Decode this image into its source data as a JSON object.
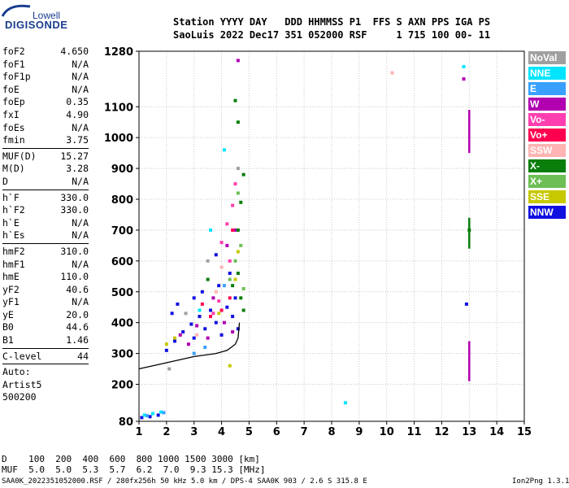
{
  "logo": {
    "top": "Lowell",
    "bottom": "DIGISONDE"
  },
  "header": {
    "row1": "Station YYYY DAY   DDD HHMMSS P1  FFS S AXN PPS IGA PS",
    "row2": "SaoLuis 2022 Dec17 351 052000 RSF     1 715 100 00- 11"
  },
  "params": {
    "group1": [
      [
        "foF2",
        "4.650"
      ],
      [
        "foF1",
        "N/A"
      ],
      [
        "foF1p",
        "N/A"
      ],
      [
        "foE",
        "N/A"
      ],
      [
        "foEp",
        "0.35"
      ],
      [
        "fxI",
        "4.90"
      ],
      [
        "foEs",
        "N/A"
      ],
      [
        "fmin",
        "3.75"
      ]
    ],
    "group2": [
      [
        "MUF(D)",
        "15.27"
      ],
      [
        "M(D)",
        "3.28"
      ],
      [
        "D",
        "N/A"
      ]
    ],
    "group3": [
      [
        "h`F",
        "330.0"
      ],
      [
        "h`F2",
        "330.0"
      ],
      [
        "h`E",
        "N/A"
      ],
      [
        "h`Es",
        "N/A"
      ]
    ],
    "group4": [
      [
        "hmF2",
        "310.0"
      ],
      [
        "hmF1",
        "N/A"
      ],
      [
        "hmE",
        "110.0"
      ],
      [
        "yF2",
        "40.6"
      ],
      [
        "yF1",
        "N/A"
      ],
      [
        "yE",
        "20.0"
      ],
      [
        "B0",
        "44.6"
      ],
      [
        "B1",
        "1.46"
      ]
    ],
    "clevel": [
      "C-level",
      "44"
    ],
    "auto": [
      "Auto:",
      "Artist5",
      "500200"
    ]
  },
  "legend": [
    {
      "label": "NoVal",
      "color": "#a0a0a0"
    },
    {
      "label": "NNE",
      "color": "#00e5ff"
    },
    {
      "label": "E",
      "color": "#3aa0ff"
    },
    {
      "label": "W",
      "color": "#b000b0"
    },
    {
      "label": "Vo-",
      "color": "#ff3fb0"
    },
    {
      "label": "Vo+",
      "color": "#ff0050"
    },
    {
      "label": "SSW",
      "color": "#ffb3b3"
    },
    {
      "label": "X-",
      "color": "#0a7d0a"
    },
    {
      "label": "X+",
      "color": "#6cbf55"
    },
    {
      "label": "SSE",
      "color": "#c8c800"
    },
    {
      "label": "NNW",
      "color": "#1010e0"
    }
  ],
  "bottom_table": {
    "row1": "D    100  200  400  600  800 1000 1500 3000 [km]",
    "row2": "MUF  5.0  5.0  5.3  5.7  6.2  7.0  9.3 15.3 [MHz]"
  },
  "footer": "SAA0K_2022351052000.RSF / 280fx256h 50 kHz 5.0 km / DPS-4 SAA0K 903 / 2.6 S 315.8 E",
  "version": "Ion2Png 1.3.17",
  "chart_data": {
    "type": "scatter",
    "title": "",
    "xlabel": "",
    "ylabel": "",
    "xlim": [
      1,
      15
    ],
    "ylim": [
      80,
      1280
    ],
    "x_ticks": [
      1,
      2,
      3,
      4,
      5,
      6,
      7,
      8,
      9,
      10,
      11,
      12,
      13,
      14,
      15
    ],
    "y_ticks": [
      80,
      200,
      300,
      400,
      500,
      600,
      700,
      800,
      900,
      1000,
      1100,
      1280
    ],
    "grid": true,
    "legend_placement": "right",
    "traces_note_only_visual": true,
    "series": [
      {
        "name": "NNW",
        "color": "#1010e0",
        "points": [
          [
            1.1,
            92
          ],
          [
            1.4,
            95
          ],
          [
            1.7,
            100
          ],
          [
            2.0,
            310
          ],
          [
            2.3,
            340
          ],
          [
            2.6,
            370
          ],
          [
            2.9,
            395
          ],
          [
            3.0,
            350
          ],
          [
            3.2,
            420
          ],
          [
            3.4,
            380
          ],
          [
            3.6,
            440
          ],
          [
            3.8,
            400
          ],
          [
            4.0,
            360
          ],
          [
            4.2,
            450
          ],
          [
            4.4,
            420
          ],
          [
            4.5,
            480
          ],
          [
            4.6,
            380
          ],
          [
            3.8,
            620
          ],
          [
            3.9,
            520
          ],
          [
            2.2,
            430
          ],
          [
            2.4,
            460
          ],
          [
            3.0,
            480
          ],
          [
            3.3,
            500
          ],
          [
            4.3,
            560
          ],
          [
            12.9,
            460
          ]
        ]
      },
      {
        "name": "W",
        "color": "#b000b0",
        "points": [
          [
            2.5,
            360
          ],
          [
            2.8,
            330
          ],
          [
            3.1,
            390
          ],
          [
            3.5,
            350
          ],
          [
            3.7,
            480
          ],
          [
            4.1,
            400
          ],
          [
            4.4,
            370
          ],
          [
            4.2,
            650
          ],
          [
            4.5,
            700
          ],
          [
            4.6,
            1250
          ],
          [
            12.8,
            1190
          ]
        ]
      },
      {
        "name": "X-",
        "color": "#0a7d0a",
        "points": [
          [
            4.4,
            520
          ],
          [
            4.6,
            560
          ],
          [
            4.7,
            480
          ],
          [
            4.8,
            440
          ],
          [
            4.6,
            700
          ],
          [
            4.7,
            790
          ],
          [
            4.8,
            880
          ],
          [
            4.6,
            1050
          ],
          [
            4.5,
            1120
          ],
          [
            3.5,
            540
          ],
          [
            13.0,
            700
          ]
        ]
      },
      {
        "name": "X+",
        "color": "#6cbf55",
        "points": [
          [
            4.5,
            600
          ],
          [
            4.7,
            650
          ],
          [
            4.6,
            820
          ],
          [
            4.8,
            510
          ],
          [
            4.3,
            540
          ]
        ]
      },
      {
        "name": "Vo-",
        "color": "#ff3fb0",
        "points": [
          [
            4.0,
            660
          ],
          [
            4.2,
            720
          ],
          [
            4.4,
            780
          ],
          [
            4.5,
            850
          ],
          [
            4.3,
            600
          ],
          [
            3.7,
            430
          ],
          [
            3.9,
            470
          ]
        ]
      },
      {
        "name": "Vo+",
        "color": "#ff0050",
        "points": [
          [
            3.3,
            460
          ],
          [
            3.6,
            420
          ],
          [
            4.0,
            440
          ],
          [
            4.3,
            480
          ],
          [
            4.4,
            700
          ]
        ]
      },
      {
        "name": "SSE",
        "color": "#c8c800",
        "points": [
          [
            2.0,
            330
          ],
          [
            2.3,
            350
          ],
          [
            3.9,
            430
          ],
          [
            4.5,
            540
          ],
          [
            4.6,
            630
          ],
          [
            4.3,
            260
          ]
        ]
      },
      {
        "name": "NNE",
        "color": "#00e5ff",
        "points": [
          [
            1.2,
            100
          ],
          [
            1.5,
            105
          ],
          [
            1.8,
            110
          ],
          [
            3.2,
            440
          ],
          [
            3.6,
            700
          ],
          [
            8.5,
            140
          ],
          [
            12.8,
            1230
          ],
          [
            4.1,
            960
          ]
        ]
      },
      {
        "name": "E",
        "color": "#3aa0ff",
        "points": [
          [
            1.3,
            98
          ],
          [
            1.9,
            108
          ],
          [
            3.0,
            300
          ],
          [
            3.4,
            320
          ],
          [
            4.1,
            520
          ]
        ]
      },
      {
        "name": "SSW",
        "color": "#ffb3b3",
        "points": [
          [
            3.1,
            360
          ],
          [
            3.8,
            500
          ],
          [
            4.0,
            580
          ],
          [
            10.2,
            1210
          ]
        ]
      },
      {
        "name": "NoVal",
        "color": "#a0a0a0",
        "points": [
          [
            2.7,
            430
          ],
          [
            3.5,
            600
          ],
          [
            4.6,
            900
          ],
          [
            2.1,
            250
          ]
        ]
      }
    ],
    "vertical_bars": [
      {
        "x": 13.0,
        "y": [
          950,
          1090
        ],
        "color": "#b000b0"
      },
      {
        "x": 13.0,
        "y": [
          210,
          340
        ],
        "color": "#b000b0"
      },
      {
        "x": 13.0,
        "y": [
          640,
          740
        ],
        "color": "#0a7d0a"
      }
    ]
  }
}
